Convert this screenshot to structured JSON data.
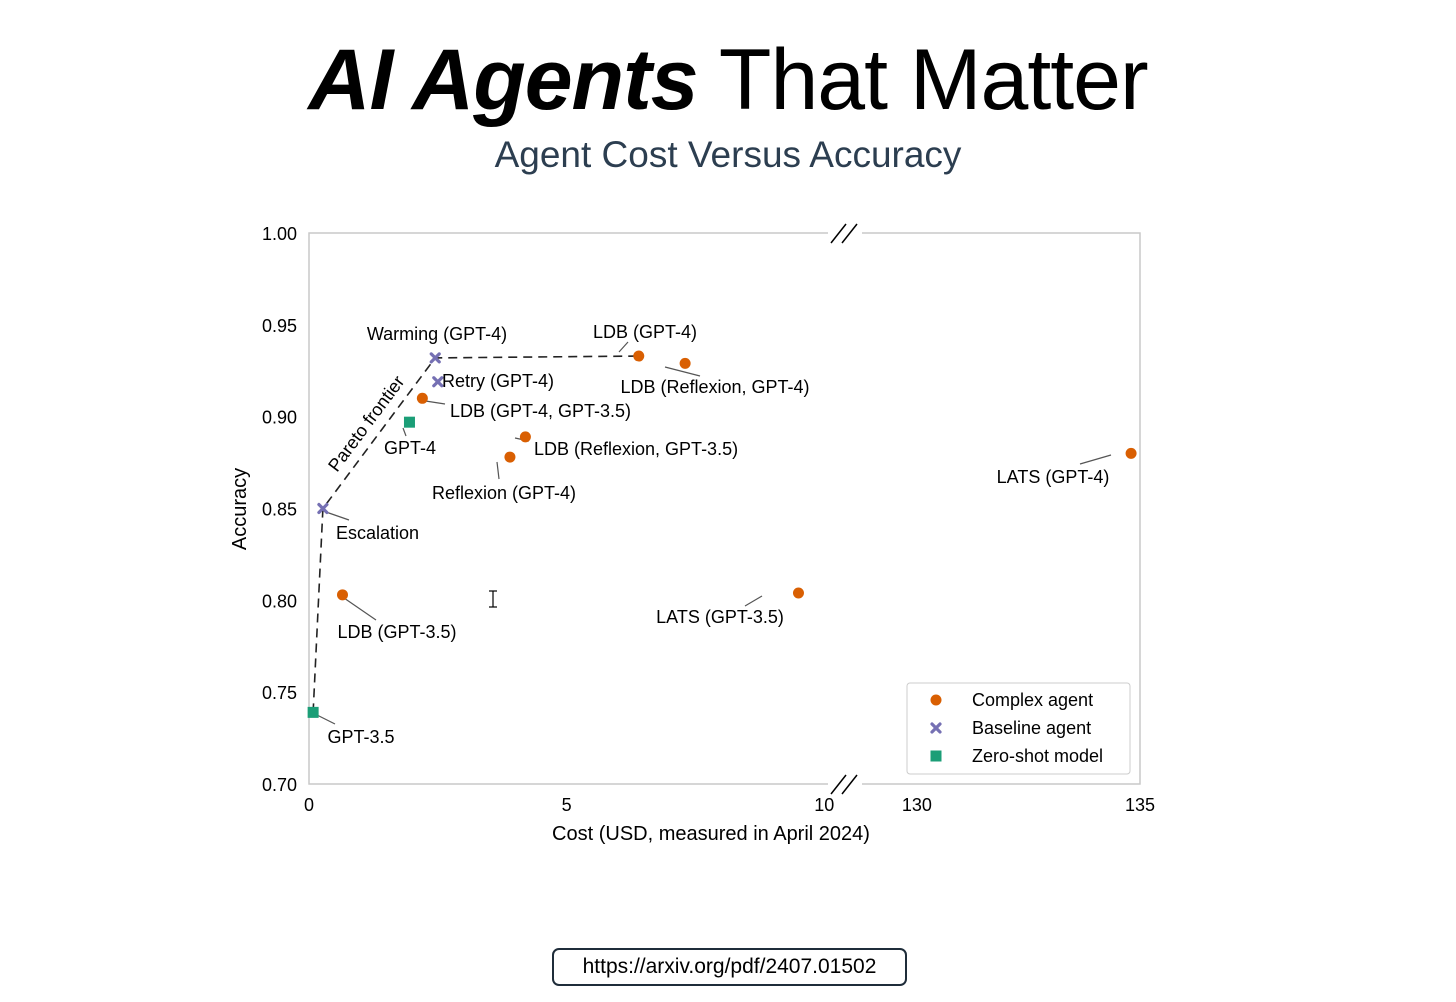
{
  "header": {
    "title_bold": "AI Agents",
    "title_rest": "That Matter",
    "subtitle": "Agent Cost Versus Accuracy"
  },
  "footer": {
    "url": "https://arxiv.org/pdf/2407.01502"
  },
  "chart_data": {
    "type": "scatter",
    "title": "Agent Cost Versus Accuracy",
    "xlabel": "Cost (USD, measured in April 2024)",
    "ylabel": "Accuracy",
    "ylim": [
      0.7,
      1.0
    ],
    "y_ticks": [
      "0.70",
      "0.75",
      "0.80",
      "0.85",
      "0.90",
      "0.95",
      "1.00"
    ],
    "x_axis": {
      "broken": true,
      "segments": [
        {
          "range": [
            0,
            10.5
          ],
          "ticks": [
            0,
            5,
            10
          ]
        },
        {
          "range": [
            128.5,
            135
          ],
          "ticks": [
            130,
            135
          ]
        }
      ]
    },
    "grid": false,
    "legend_position": "bottom-right",
    "colors": {
      "complex": "#d95f02",
      "baseline": "#7570b3",
      "zeroshot": "#1b9e77"
    },
    "series": [
      {
        "name": "Complex agent",
        "marker": "circle",
        "color": "#d95f02",
        "points": [
          {
            "label": "LDB (GPT-4)",
            "x": 6.4,
            "y": 0.933
          },
          {
            "label": "LDB (Reflexion, GPT-4)",
            "x": 7.3,
            "y": 0.929
          },
          {
            "label": "LDB (GPT-4, GPT-3.5)",
            "x": 2.2,
            "y": 0.91
          },
          {
            "label": "LDB (Reflexion, GPT-3.5)",
            "x": 4.2,
            "y": 0.889
          },
          {
            "label": "Reflexion (GPT-4)",
            "x": 3.9,
            "y": 0.878
          },
          {
            "label": "LDB (GPT-3.5)",
            "x": 0.65,
            "y": 0.803
          },
          {
            "label": "LATS (GPT-3.5)",
            "x": 9.5,
            "y": 0.804
          },
          {
            "label": "LATS (GPT-4)",
            "x": 134.8,
            "y": 0.88
          }
        ]
      },
      {
        "name": "Baseline agent",
        "marker": "x",
        "color": "#7570b3",
        "points": [
          {
            "label": "Warming (GPT-4)",
            "x": 2.45,
            "y": 0.932
          },
          {
            "label": "Retry (GPT-4)",
            "x": 2.5,
            "y": 0.919
          },
          {
            "label": "Escalation",
            "x": 0.27,
            "y": 0.85
          }
        ]
      },
      {
        "name": "Zero-shot model",
        "marker": "square",
        "color": "#1b9e77",
        "points": [
          {
            "label": "GPT-4",
            "x": 1.95,
            "y": 0.897
          },
          {
            "label": "GPT-3.5",
            "x": 0.08,
            "y": 0.739
          }
        ]
      }
    ],
    "pareto_frontier": {
      "label": "Pareto frontier",
      "points": [
        [
          0.08,
          0.739
        ],
        [
          0.27,
          0.85
        ],
        [
          2.45,
          0.932
        ],
        [
          6.4,
          0.933
        ]
      ]
    }
  }
}
